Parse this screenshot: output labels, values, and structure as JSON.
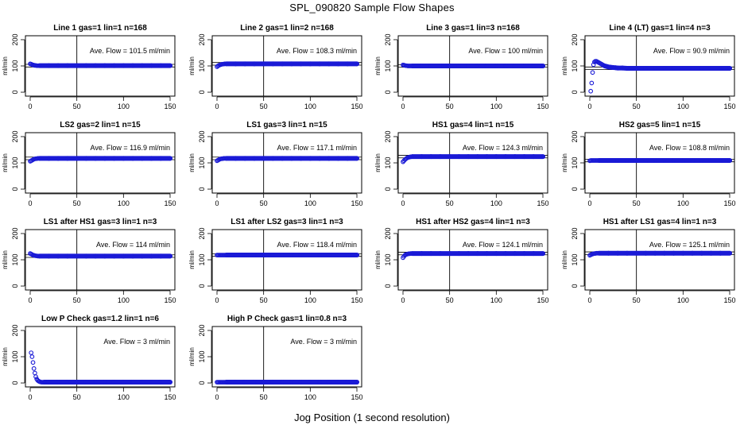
{
  "figure": {
    "title": "SPL_090820  Sample Flow Shapes",
    "xlabel": "Jog Position (1 second resolution)"
  },
  "chart_data": [
    {
      "type": "scatter",
      "title": "Line 1 gas=1 lin=1 n=168",
      "ylabel": "ml/min",
      "xlim": [
        0,
        150
      ],
      "ylim": [
        -15,
        215
      ],
      "xticks": [
        0,
        50,
        100,
        150
      ],
      "yticks": [
        0,
        100,
        200
      ],
      "vline_x": 50,
      "reference_lines": [
        96,
        106
      ],
      "annotation": "Ave. Flow =  101.5  ml/min",
      "x": [
        0,
        1,
        2,
        3,
        4,
        5,
        6,
        7,
        8,
        9,
        10,
        20,
        30,
        40,
        50,
        60,
        70,
        80,
        90,
        100,
        110,
        120,
        130,
        140,
        150
      ],
      "y": [
        108,
        107,
        105,
        104,
        103,
        102,
        102,
        101,
        101,
        101,
        101,
        101,
        101,
        101,
        101,
        101,
        101,
        101,
        101,
        101,
        101,
        101,
        101,
        101,
        101
      ]
    },
    {
      "type": "scatter",
      "title": "Line 2 gas=1 lin=2 n=168",
      "ylabel": "ml/min",
      "xlim": [
        0,
        150
      ],
      "ylim": [
        -15,
        215
      ],
      "xticks": [
        0,
        50,
        100,
        150
      ],
      "yticks": [
        0,
        100,
        200
      ],
      "vline_x": 50,
      "reference_lines": [
        103,
        113
      ],
      "annotation": "Ave. Flow =  108.3  ml/min",
      "x": [
        0,
        1,
        2,
        3,
        4,
        5,
        6,
        7,
        8,
        9,
        10,
        20,
        30,
        40,
        50,
        60,
        70,
        80,
        90,
        100,
        110,
        120,
        130,
        140,
        150
      ],
      "y": [
        97,
        100,
        102,
        104,
        105,
        106,
        107,
        107,
        108,
        108,
        108,
        108,
        108,
        108,
        108,
        108,
        108,
        108,
        108,
        108,
        108,
        108,
        108,
        108,
        108
      ]
    },
    {
      "type": "scatter",
      "title": "Line 3 gas=1 lin=3 n=168",
      "ylabel": "ml/min",
      "xlim": [
        0,
        150
      ],
      "ylim": [
        -15,
        215
      ],
      "xticks": [
        0,
        50,
        100,
        150
      ],
      "yticks": [
        0,
        100,
        200
      ],
      "vline_x": 50,
      "reference_lines": [
        95,
        105
      ],
      "annotation": "Ave. Flow =  100  ml/min",
      "x": [
        0,
        1,
        2,
        3,
        4,
        5,
        6,
        7,
        8,
        9,
        10,
        20,
        30,
        40,
        50,
        60,
        70,
        80,
        90,
        100,
        110,
        120,
        130,
        140,
        150
      ],
      "y": [
        104,
        103,
        102,
        101,
        101,
        100,
        100,
        100,
        100,
        100,
        100,
        100,
        100,
        100,
        100,
        100,
        100,
        100,
        100,
        100,
        100,
        100,
        100,
        100,
        100
      ]
    },
    {
      "type": "scatter",
      "title": "Line 4 (LT) gas=1 lin=4 n=3",
      "ylabel": "ml/min",
      "xlim": [
        0,
        150
      ],
      "ylim": [
        -15,
        215
      ],
      "xticks": [
        0,
        50,
        100,
        150
      ],
      "yticks": [
        0,
        100,
        200
      ],
      "vline_x": 50,
      "reference_lines": [
        86,
        96
      ],
      "annotation": "Ave. Flow =  90.9  ml/min",
      "x": [
        1,
        2,
        3,
        4,
        5,
        6,
        7,
        8,
        9,
        10,
        11,
        12,
        13,
        14,
        15,
        16,
        18,
        20,
        22,
        25,
        28,
        30,
        35,
        40,
        50,
        60,
        70,
        80,
        90,
        100,
        110,
        120,
        130,
        140,
        150
      ],
      "y": [
        4,
        35,
        75,
        105,
        115,
        118,
        118,
        116,
        114,
        112,
        110,
        108,
        106,
        104,
        102,
        100,
        98,
        96,
        95,
        94,
        93,
        92,
        92,
        91,
        91,
        91,
        91,
        91,
        91,
        91,
        91,
        91,
        91,
        91,
        91
      ]
    },
    {
      "type": "scatter",
      "title": "LS2 gas=2 lin=1 n=15",
      "ylabel": "ml/min",
      "xlim": [
        0,
        150
      ],
      "ylim": [
        -15,
        215
      ],
      "xticks": [
        0,
        50,
        100,
        150
      ],
      "yticks": [
        0,
        100,
        200
      ],
      "vline_x": 50,
      "reference_lines": [
        112,
        122
      ],
      "annotation": "Ave. Flow =  116.9  ml/min",
      "x": [
        0,
        1,
        2,
        3,
        4,
        5,
        6,
        7,
        8,
        9,
        10,
        20,
        30,
        40,
        50,
        60,
        70,
        80,
        90,
        100,
        110,
        120,
        130,
        140,
        150
      ],
      "y": [
        106,
        108,
        110,
        112,
        114,
        115,
        116,
        116,
        117,
        117,
        117,
        117,
        117,
        117,
        117,
        117,
        117,
        117,
        117,
        117,
        117,
        117,
        117,
        117,
        117
      ]
    },
    {
      "type": "scatter",
      "title": "LS1 gas=3 lin=1 n=15",
      "ylabel": "ml/min",
      "xlim": [
        0,
        150
      ],
      "ylim": [
        -15,
        215
      ],
      "xticks": [
        0,
        50,
        100,
        150
      ],
      "yticks": [
        0,
        100,
        200
      ],
      "vline_x": 50,
      "reference_lines": [
        112,
        122
      ],
      "annotation": "Ave. Flow =  117.1  ml/min",
      "x": [
        0,
        1,
        2,
        3,
        4,
        5,
        6,
        7,
        8,
        9,
        10,
        20,
        30,
        40,
        50,
        60,
        70,
        80,
        90,
        100,
        110,
        120,
        130,
        140,
        150
      ],
      "y": [
        108,
        110,
        112,
        114,
        115,
        116,
        116,
        117,
        117,
        117,
        117,
        117,
        117,
        117,
        117,
        117,
        117,
        117,
        117,
        117,
        117,
        117,
        117,
        117,
        117
      ]
    },
    {
      "type": "scatter",
      "title": "HS1 gas=4 lin=1 n=15",
      "ylabel": "ml/min",
      "xlim": [
        0,
        150
      ],
      "ylim": [
        -15,
        215
      ],
      "xticks": [
        0,
        50,
        100,
        150
      ],
      "yticks": [
        0,
        100,
        200
      ],
      "vline_x": 50,
      "reference_lines": [
        119,
        129
      ],
      "annotation": "Ave. Flow =  124.3  ml/min",
      "x": [
        0,
        1,
        2,
        3,
        4,
        5,
        6,
        7,
        8,
        9,
        10,
        20,
        30,
        40,
        50,
        60,
        70,
        80,
        90,
        100,
        110,
        120,
        130,
        140,
        150
      ],
      "y": [
        104,
        108,
        112,
        115,
        118,
        120,
        121,
        122,
        123,
        123,
        124,
        124,
        124,
        124,
        124,
        124,
        124,
        124,
        124,
        124,
        124,
        124,
        124,
        124,
        124
      ]
    },
    {
      "type": "scatter",
      "title": "HS2 gas=5 lin=1 n=15",
      "ylabel": "ml/min",
      "xlim": [
        0,
        150
      ],
      "ylim": [
        -15,
        215
      ],
      "xticks": [
        0,
        50,
        100,
        150
      ],
      "yticks": [
        0,
        100,
        200
      ],
      "vline_x": 50,
      "reference_lines": [
        104,
        114
      ],
      "annotation": "Ave. Flow =  108.8  ml/min",
      "x": [
        0,
        1,
        2,
        3,
        4,
        5,
        6,
        7,
        8,
        9,
        10,
        20,
        30,
        40,
        50,
        60,
        70,
        80,
        90,
        100,
        110,
        120,
        130,
        140,
        150
      ],
      "y": [
        108,
        109,
        109,
        109,
        109,
        109,
        109,
        109,
        109,
        109,
        109,
        109,
        109,
        109,
        109,
        109,
        109,
        109,
        109,
        109,
        109,
        109,
        109,
        109,
        109
      ]
    },
    {
      "type": "scatter",
      "title": "LS1 after HS1 gas=3 lin=1 n=3",
      "ylabel": "ml/min",
      "xlim": [
        0,
        150
      ],
      "ylim": [
        -15,
        215
      ],
      "xticks": [
        0,
        50,
        100,
        150
      ],
      "yticks": [
        0,
        100,
        200
      ],
      "vline_x": 50,
      "reference_lines": [
        109,
        119
      ],
      "annotation": "Ave. Flow =  114  ml/min",
      "x": [
        0,
        1,
        2,
        3,
        4,
        5,
        6,
        7,
        8,
        9,
        10,
        20,
        30,
        40,
        50,
        60,
        70,
        80,
        90,
        100,
        110,
        120,
        130,
        140,
        150
      ],
      "y": [
        124,
        122,
        120,
        118,
        117,
        116,
        115,
        115,
        114,
        114,
        114,
        114,
        114,
        114,
        114,
        114,
        114,
        114,
        114,
        114,
        114,
        114,
        114,
        114,
        114
      ]
    },
    {
      "type": "scatter",
      "title": "LS1 after LS2 gas=3 lin=1 n=3",
      "ylabel": "ml/min",
      "xlim": [
        0,
        150
      ],
      "ylim": [
        -15,
        215
      ],
      "xticks": [
        0,
        50,
        100,
        150
      ],
      "yticks": [
        0,
        100,
        200
      ],
      "vline_x": 50,
      "reference_lines": [
        113,
        123
      ],
      "annotation": "Ave. Flow =  118.4  ml/min",
      "x": [
        0,
        1,
        2,
        3,
        4,
        5,
        6,
        7,
        8,
        9,
        10,
        20,
        30,
        40,
        50,
        60,
        70,
        80,
        90,
        100,
        110,
        120,
        130,
        140,
        150
      ],
      "y": [
        118,
        118,
        118,
        118,
        118,
        118,
        118,
        118,
        118,
        118,
        118,
        118,
        118,
        118,
        118,
        118,
        118,
        118,
        118,
        118,
        118,
        118,
        118,
        118,
        118
      ]
    },
    {
      "type": "scatter",
      "title": "HS1 after HS2 gas=4 lin=1 n=3",
      "ylabel": "ml/min",
      "xlim": [
        0,
        150
      ],
      "ylim": [
        -15,
        215
      ],
      "xticks": [
        0,
        50,
        100,
        150
      ],
      "yticks": [
        0,
        100,
        200
      ],
      "vline_x": 50,
      "reference_lines": [
        119,
        129
      ],
      "annotation": "Ave. Flow =  124.1  ml/min",
      "x": [
        0,
        1,
        2,
        3,
        4,
        5,
        6,
        7,
        8,
        9,
        10,
        20,
        30,
        40,
        50,
        60,
        70,
        80,
        90,
        100,
        110,
        120,
        130,
        140,
        150
      ],
      "y": [
        108,
        113,
        117,
        120,
        121,
        122,
        123,
        123,
        124,
        124,
        124,
        124,
        124,
        124,
        124,
        124,
        124,
        124,
        124,
        124,
        124,
        124,
        124,
        124,
        124
      ]
    },
    {
      "type": "scatter",
      "title": "HS1 after LS1 gas=4 lin=1 n=3",
      "ylabel": "ml/min",
      "xlim": [
        0,
        150
      ],
      "ylim": [
        -15,
        215
      ],
      "xticks": [
        0,
        50,
        100,
        150
      ],
      "yticks": [
        0,
        100,
        200
      ],
      "vline_x": 50,
      "reference_lines": [
        120,
        130
      ],
      "annotation": "Ave. Flow =  125.1  ml/min",
      "x": [
        0,
        1,
        2,
        3,
        4,
        5,
        6,
        7,
        8,
        9,
        10,
        20,
        30,
        40,
        50,
        60,
        70,
        80,
        90,
        100,
        110,
        120,
        130,
        140,
        150
      ],
      "y": [
        117,
        119,
        121,
        122,
        123,
        124,
        124,
        125,
        125,
        125,
        125,
        125,
        125,
        125,
        125,
        125,
        125,
        125,
        125,
        125,
        125,
        125,
        125,
        125,
        125
      ]
    },
    {
      "type": "scatter",
      "title": "Low P Check gas=1.2 lin=1 n=6",
      "ylabel": "ml/min",
      "xlim": [
        0,
        150
      ],
      "ylim": [
        -15,
        215
      ],
      "xticks": [
        0,
        50,
        100,
        150
      ],
      "yticks": [
        0,
        100,
        200
      ],
      "vline_x": 50,
      "reference_lines": [],
      "annotation": "Ave. Flow =  3  ml/min",
      "x": [
        1,
        2,
        3,
        4,
        5,
        6,
        7,
        8,
        9,
        10,
        11,
        12,
        13,
        14,
        15,
        20,
        30,
        40,
        50,
        60,
        70,
        80,
        90,
        100,
        110,
        120,
        130,
        140,
        150
      ],
      "y": [
        115,
        100,
        78,
        55,
        38,
        24,
        15,
        10,
        7,
        5,
        4,
        3,
        3,
        3,
        3,
        3,
        3,
        3,
        3,
        3,
        3,
        3,
        3,
        3,
        3,
        3,
        3,
        3,
        3
      ]
    },
    {
      "type": "scatter",
      "title": "High P Check gas=1 lin=0.8 n=3",
      "ylabel": "ml/min",
      "xlim": [
        0,
        150
      ],
      "ylim": [
        -15,
        215
      ],
      "xticks": [
        0,
        50,
        100,
        150
      ],
      "yticks": [
        0,
        100,
        200
      ],
      "vline_x": 50,
      "reference_lines": [],
      "annotation": "Ave. Flow =  3  ml/min",
      "x": [
        0,
        1,
        2,
        3,
        4,
        5,
        6,
        7,
        8,
        9,
        10,
        20,
        30,
        40,
        50,
        60,
        70,
        80,
        90,
        100,
        110,
        120,
        130,
        140,
        150
      ],
      "y": [
        3,
        3,
        3,
        3,
        3,
        3,
        3,
        3,
        3,
        3,
        3,
        3,
        3,
        3,
        3,
        3,
        3,
        3,
        3,
        3,
        3,
        3,
        3,
        3,
        3
      ]
    }
  ]
}
